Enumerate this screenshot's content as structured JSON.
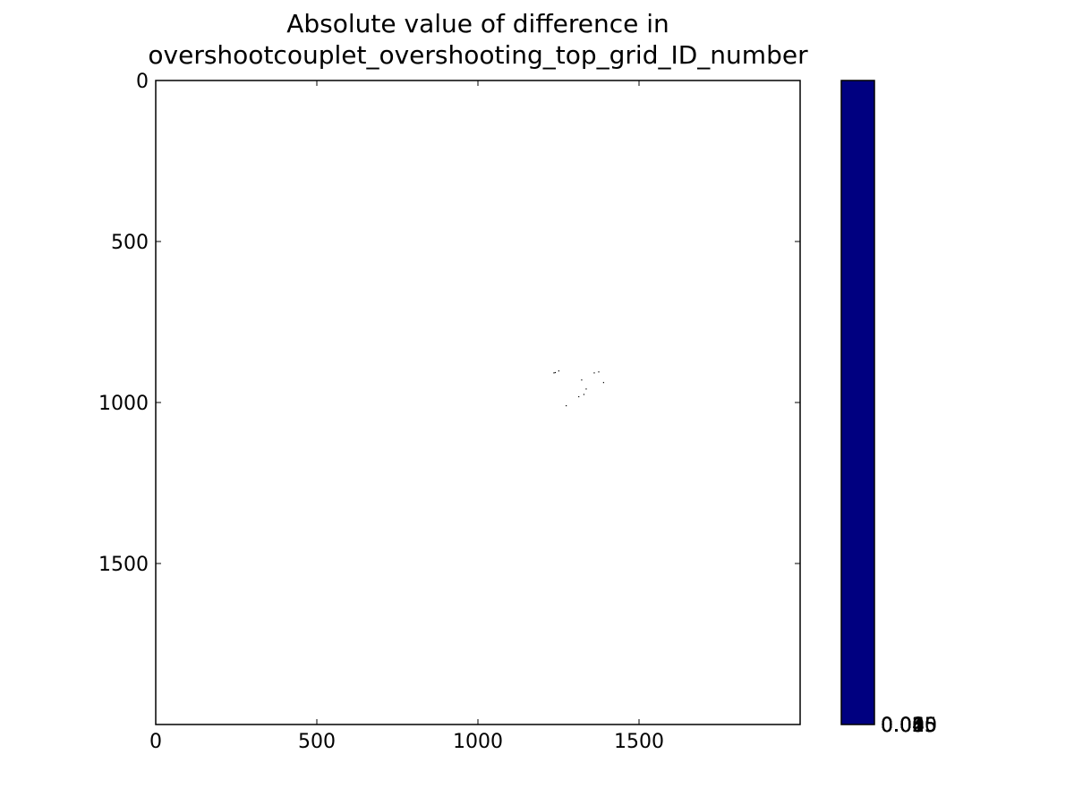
{
  "chart_data": {
    "type": "heatmap",
    "title_lines": [
      "Absolute value of difference in",
      "overshootcouplet_overshooting_top_grid_ID_number"
    ],
    "xlabel": "",
    "ylabel": "",
    "xlim": [
      0,
      2000
    ],
    "ylim": [
      2000,
      0
    ],
    "x_ticks": [
      0,
      500,
      1000,
      1500
    ],
    "y_ticks": [
      0,
      500,
      1000,
      1500
    ],
    "x_tick_labels": [
      "0",
      "500",
      "1000",
      "1500"
    ],
    "y_tick_labels": [
      "0",
      "500",
      "1000",
      "1500"
    ],
    "y_axis_inverted": true,
    "grid": false,
    "background_value_color": "#ffffff",
    "points": [
      {
        "x": 1236,
        "y": 908
      },
      {
        "x": 1240,
        "y": 907
      },
      {
        "x": 1251,
        "y": 902
      },
      {
        "x": 1361,
        "y": 908
      },
      {
        "x": 1375,
        "y": 905
      },
      {
        "x": 1322,
        "y": 930
      },
      {
        "x": 1390,
        "y": 938
      },
      {
        "x": 1336,
        "y": 958
      },
      {
        "x": 1329,
        "y": 975
      },
      {
        "x": 1313,
        "y": 982
      },
      {
        "x": 1274,
        "y": 1010
      }
    ],
    "point_color": "#000000",
    "colorbar": {
      "color": "#000080",
      "tick_labels": [
        "0.000",
        "0.005",
        "0.010",
        "0.015",
        "0.025",
        "0.035",
        "0.045",
        "0.055",
        "0.065"
      ]
    }
  }
}
